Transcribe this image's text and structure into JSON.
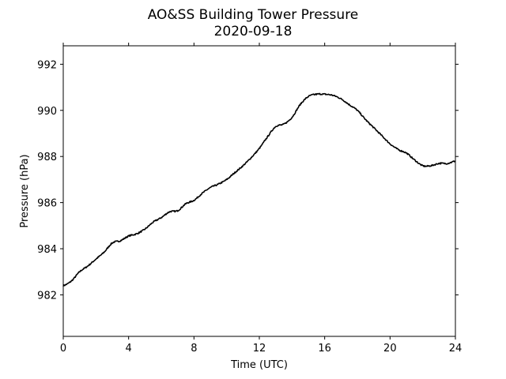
{
  "chart_data": {
    "type": "line",
    "title": "AO&SS Building Tower Pressure",
    "subtitle": "2020-09-18",
    "xlabel": "Time (UTC)",
    "ylabel": "Pressure (hPa)",
    "xlim": [
      0,
      24
    ],
    "ylim": [
      980.2,
      992.8
    ],
    "xticks": [
      0,
      4,
      8,
      12,
      16,
      20,
      24
    ],
    "yticks": [
      982,
      984,
      986,
      988,
      990,
      992
    ],
    "grid": false,
    "legend": "none",
    "series": [
      {
        "color": "#000000",
        "x": [
          0,
          0.5,
          1,
          1.5,
          2,
          2.5,
          3,
          3.5,
          4,
          4.5,
          5,
          5.5,
          6,
          6.5,
          7,
          7.5,
          8,
          8.5,
          9,
          9.5,
          10,
          10.5,
          11,
          11.5,
          12,
          12.5,
          13,
          13.5,
          14,
          14.5,
          15,
          15.5,
          16,
          16.5,
          17,
          17.5,
          18,
          18.5,
          19,
          19.5,
          20,
          20.5,
          21,
          21.5,
          22,
          22.5,
          23,
          23.5,
          24
        ],
        "y": [
          982.4,
          982.6,
          983.0,
          983.25,
          983.55,
          983.85,
          984.25,
          984.35,
          984.55,
          984.65,
          984.85,
          985.15,
          985.35,
          985.6,
          985.65,
          985.95,
          986.1,
          986.4,
          986.65,
          986.8,
          987.0,
          987.3,
          987.6,
          987.95,
          988.35,
          988.85,
          989.3,
          989.4,
          989.7,
          990.25,
          990.6,
          990.7,
          990.7,
          990.65,
          990.5,
          990.25,
          990.0,
          989.6,
          989.25,
          988.9,
          988.55,
          988.3,
          988.15,
          987.85,
          987.6,
          987.6,
          987.7,
          987.7,
          987.8
        ]
      }
    ]
  }
}
